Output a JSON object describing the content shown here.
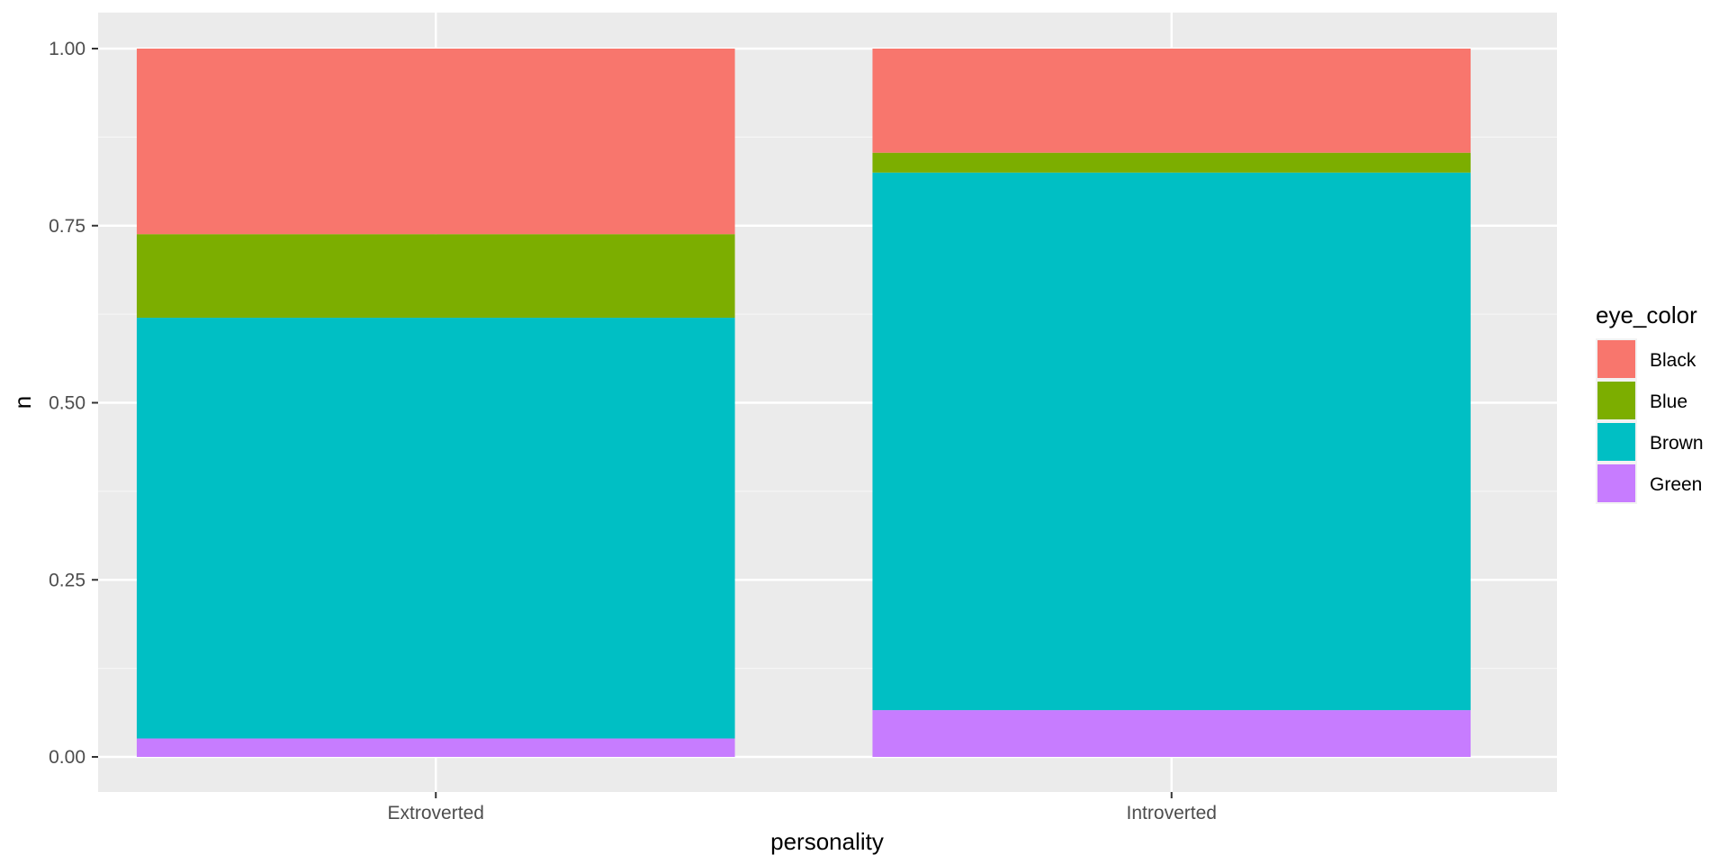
{
  "chart_data": {
    "type": "bar",
    "stacked": true,
    "position": "fill",
    "title": "",
    "xlabel": "personality",
    "ylabel": "n",
    "categories": [
      "Extroverted",
      "Introverted"
    ],
    "ylim": [
      0,
      1
    ],
    "yticks": [
      0,
      0.25,
      0.5,
      0.75,
      1
    ],
    "ytick_labels": [
      "0.00",
      "0.25",
      "0.50",
      "0.75",
      "1.00"
    ],
    "grid": true,
    "legend": {
      "title": "eye_color",
      "position": "right"
    },
    "series": [
      {
        "name": "Black",
        "color": "#F8766D",
        "values": [
          0.262,
          0.147
        ]
      },
      {
        "name": "Blue",
        "color": "#7CAE00",
        "values": [
          0.118,
          0.028
        ]
      },
      {
        "name": "Brown",
        "color": "#00BFC4",
        "values": [
          0.594,
          0.759
        ]
      },
      {
        "name": "Green",
        "color": "#C77CFF",
        "values": [
          0.026,
          0.066
        ]
      }
    ]
  }
}
